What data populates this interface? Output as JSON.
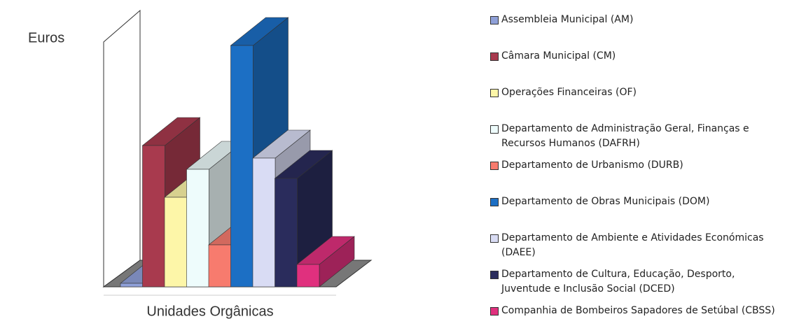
{
  "chart_data": {
    "type": "bar3d",
    "y_label": "Euros",
    "x_label": "Unidades Orgânicas",
    "series": [
      {
        "name": "Assembleia Municipal (AM)",
        "color": "#8fa0d8",
        "values": [
          5
        ]
      },
      {
        "name": "Câmara Municipal (CM)",
        "color": "#a83a4e",
        "values": [
          202
        ]
      },
      {
        "name": "Operações Financeiras (OF)",
        "color": "#fdf6a8",
        "values": [
          128
        ]
      },
      {
        "name": "Departamento de Administração Geral, Finanças e Recursos Humanos (DAFRH)",
        "color": "#eefcfc",
        "values": [
          168
        ]
      },
      {
        "name": "Departamento de Urbanismo (DURB)",
        "color": "#f77b6e",
        "values": [
          60
        ]
      },
      {
        "name": "Departamento de Obras Municipais (DOM)",
        "color": "#1c6fc4",
        "values": [
          345
        ]
      },
      {
        "name": "Departamento de Ambiente e Atividades Económicas (DAEE)",
        "color": "#d9dcf4",
        "values": [
          184
        ]
      },
      {
        "name": "Departamento de Cultura, Educação, Desporto, Juventude e Inclusão Social (DCED)",
        "color": "#2a2c5c",
        "values": [
          155
        ]
      },
      {
        "name": "Companhia de Bombeiros Sapadores de Setúbal (CBSS)",
        "color": "#e0307e",
        "values": [
          32
        ]
      }
    ],
    "legend": "right"
  }
}
